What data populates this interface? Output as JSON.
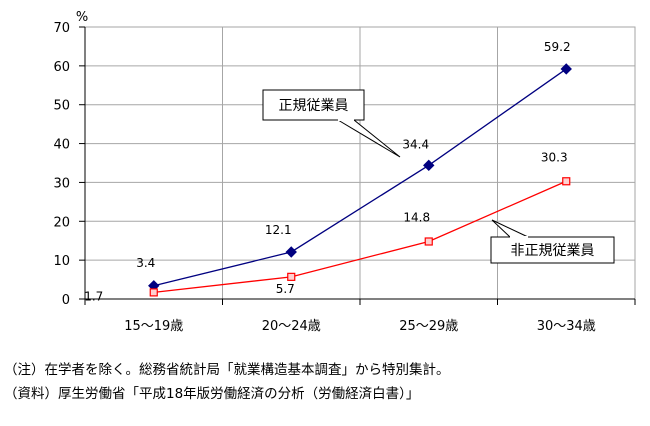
{
  "chart_data": {
    "type": "line",
    "ylabel": "%",
    "ylim": [
      0,
      70
    ],
    "yticks": [
      0,
      10,
      20,
      30,
      40,
      50,
      60,
      70
    ],
    "grid": true,
    "categories": [
      "15〜19歳",
      "20〜24歳",
      "25〜29歳",
      "30〜34歳"
    ],
    "series": [
      {
        "name": "正規従業員",
        "values": [
          3.4,
          12.1,
          34.4,
          59.2
        ],
        "labels": [
          "3.4",
          "12.1",
          "34.4",
          "59.2"
        ],
        "color": "#000080",
        "marker": "diamond"
      },
      {
        "name": "非正規従業員",
        "values": [
          1.7,
          5.7,
          14.8,
          30.3
        ],
        "labels": [
          "1.7",
          "5.7",
          "14.8",
          "30.3"
        ],
        "color": "#ff0000",
        "marker": "square"
      }
    ]
  },
  "notes": [
    "（注）在学者を除く。総務省統計局「就業構造基本調査」から特別集計。",
    "（資料）厚生労働省「平成18年版労働経済の分析（労働経済白書）」"
  ]
}
